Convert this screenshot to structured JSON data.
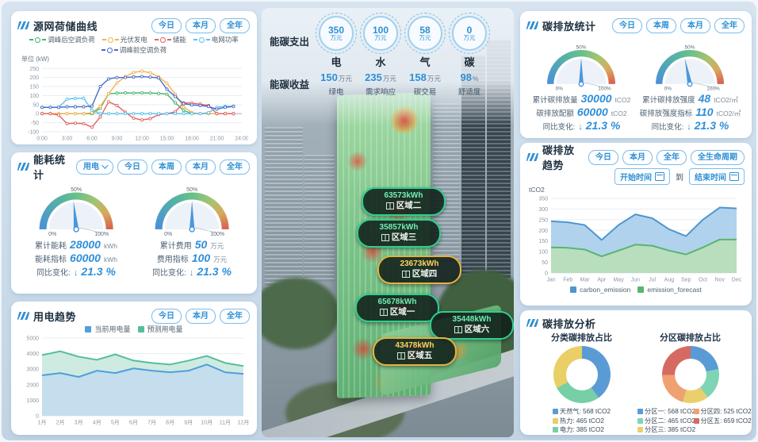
{
  "left": {
    "source_grid": {
      "title": "源网荷储曲线",
      "buttons": [
        "今日",
        "本月",
        "全年"
      ],
      "unit_label": "单位 (kW)"
    },
    "energy_stats": {
      "title": "能耗统计",
      "type_select": "用电",
      "buttons": [
        "今日",
        "本周",
        "本月",
        "全年"
      ],
      "gauges": [
        {
          "scale": [
            "0%",
            "50%",
            "100%"
          ],
          "needle_pct": 0.47,
          "rows": [
            {
              "label": "累计能耗",
              "value": "28000",
              "unit": "kWh"
            },
            {
              "label": "能耗指标",
              "value": "60000",
              "unit": "kWh"
            },
            {
              "label": "同比变化:",
              "arrow": "↓",
              "value": "21.3 %",
              "unit": ""
            }
          ]
        },
        {
          "scale": [
            "0%",
            "50%",
            "100%"
          ],
          "needle_pct": 0.5,
          "rows": [
            {
              "label": "累计费用",
              "value": "50",
              "unit": "万元"
            },
            {
              "label": "费用指标",
              "value": "100",
              "unit": "万元"
            },
            {
              "label": "同比变化:",
              "arrow": "↓",
              "value": "21.3 %",
              "unit": ""
            }
          ]
        }
      ]
    },
    "power_trend": {
      "title": "用电趋势",
      "buttons": [
        "今日",
        "本月",
        "全年"
      ]
    }
  },
  "center": {
    "expense": {
      "label": "能碳支出",
      "items": [
        {
          "value": "350",
          "unit": "万元",
          "name": "电"
        },
        {
          "value": "100",
          "unit": "万元",
          "name": "水"
        },
        {
          "value": "58",
          "unit": "万元",
          "name": "气"
        },
        {
          "value": "0",
          "unit": "万元",
          "name": "碳"
        }
      ]
    },
    "income": {
      "label": "能碳收益",
      "items": [
        {
          "value": "150",
          "unit": "万元",
          "name": "绿电"
        },
        {
          "value": "235",
          "unit": "万元",
          "name": "需求响应"
        },
        {
          "value": "158",
          "unit": "万元",
          "name": "碳交易"
        },
        {
          "value": "98",
          "unit": "%",
          "name": "舒适度"
        }
      ]
    },
    "zones": [
      {
        "value": "63573kWh",
        "name": "区域二",
        "level": "green"
      },
      {
        "value": "35857kWh",
        "name": "区域三",
        "level": "green"
      },
      {
        "value": "23673kWh",
        "name": "区域四",
        "level": "yellow"
      },
      {
        "value": "65678kWh",
        "name": "区域一",
        "level": "green"
      },
      {
        "value": "35448kWh",
        "name": "区域六",
        "level": "green"
      },
      {
        "value": "43478kWh",
        "name": "区域五",
        "level": "yellow"
      }
    ]
  },
  "right": {
    "carbon_stats": {
      "title": "碳排放统计",
      "buttons": [
        "今日",
        "本周",
        "本月",
        "全年"
      ],
      "gauges": [
        {
          "scale": [
            "0%",
            "50%",
            "100%"
          ],
          "needle_pct": 0.5,
          "rows": [
            {
              "label": "累计碳排放量",
              "value": "30000",
              "unit": "tCO2"
            },
            {
              "label": "碳排放配额",
              "value": "60000",
              "unit": "tCO2"
            },
            {
              "label": "同比变化:",
              "arrow": "↓",
              "value": "21.3 %",
              "unit": ""
            }
          ]
        },
        {
          "scale": [
            "0%",
            "50%",
            "100%"
          ],
          "needle_pct": 0.44,
          "rows": [
            {
              "label": "累计碳排放强度",
              "value": "48",
              "unit": "tCO2/㎡"
            },
            {
              "label": "碳排放强度指标",
              "value": "110",
              "unit": "tCO2/㎡"
            },
            {
              "label": "同比变化:",
              "arrow": "↓",
              "value": "21.3 %",
              "unit": ""
            }
          ]
        }
      ]
    },
    "carbon_trend": {
      "title": "碳排放趋势",
      "buttons": [
        "今日",
        "本月",
        "全年",
        "全生命周期"
      ],
      "date_start": "开始时间",
      "date_to": "到",
      "date_end": "结束时间",
      "ylabel": "tCO2"
    },
    "carbon_analysis": {
      "title": "碳排放分析",
      "left_title": "分类碳排放占比",
      "right_title": "分区碳排放占比"
    }
  },
  "chart_data": [
    {
      "id": "source_grid_curve",
      "type": "line",
      "title": "源网荷储曲线",
      "ylabel": "单位 (kW)",
      "ylim": [
        -100,
        260
      ],
      "yticks": [
        -100,
        -50,
        0,
        50,
        100,
        150,
        200,
        250
      ],
      "x_max": 24,
      "xtick_labels": [
        "0:00",
        "3:00",
        "6:00",
        "9:00",
        "12:00",
        "15:00",
        "18:00",
        "21:00",
        "24:00"
      ],
      "xtick_pos": [
        0,
        3,
        6,
        9,
        12,
        15,
        18,
        21,
        24
      ],
      "series": [
        {
          "name": "调峰后空调负荷",
          "color": "#46b36a",
          "markers": true,
          "values": [
            0,
            0,
            0,
            0,
            0,
            0,
            0,
            30,
            110,
            113,
            115,
            114,
            115,
            114,
            112,
            108,
            60,
            18,
            0,
            0,
            0,
            0,
            0,
            0
          ]
        },
        {
          "name": "光伏发电",
          "color": "#f2b24f",
          "markers": true,
          "values": [
            0,
            0,
            0,
            0,
            0,
            0,
            5,
            40,
            110,
            170,
            205,
            228,
            235,
            226,
            204,
            168,
            108,
            38,
            5,
            0,
            0,
            0,
            0,
            0
          ]
        },
        {
          "name": "储能",
          "color": "#e26262",
          "markers": true,
          "values": [
            0,
            0,
            -8,
            -55,
            -53,
            -55,
            -75,
            -18,
            65,
            45,
            8,
            -25,
            -35,
            -28,
            -5,
            0,
            10,
            60,
            58,
            53,
            45,
            0,
            0,
            0
          ]
        },
        {
          "name": "电网功率",
          "color": "#5fc0ea",
          "markers": true,
          "values": [
            35,
            35,
            35,
            80,
            84,
            85,
            20,
            0,
            0,
            0,
            0,
            0,
            0,
            0,
            0,
            0,
            0,
            0,
            0,
            0,
            5,
            35,
            40,
            40
          ]
        },
        {
          "name": "调峰前空调负荷",
          "color": "#4a6cc8",
          "markers": true,
          "values": [
            35,
            35,
            35,
            38,
            38,
            38,
            42,
            150,
            192,
            200,
            200,
            203,
            205,
            202,
            198,
            135,
            95,
            55,
            48,
            45,
            40,
            25,
            35,
            40
          ]
        }
      ]
    },
    {
      "id": "power_trend",
      "type": "area",
      "title": "用电趋势",
      "categories": [
        "1月",
        "2月",
        "3月",
        "4月",
        "5月",
        "6月",
        "7月",
        "8月",
        "9月",
        "10月",
        "11月",
        "12月"
      ],
      "ylim": [
        0,
        5000
      ],
      "yticks": [
        0,
        1000,
        2000,
        3000,
        4000,
        5000
      ],
      "series": [
        {
          "name": "预测用电量",
          "color": "#56bd9c",
          "fill": "#c9e9df",
          "width": 2,
          "values": [
            3900,
            4150,
            3800,
            3600,
            3950,
            3550,
            3400,
            3300,
            3550,
            3850,
            3400,
            3200
          ]
        },
        {
          "name": "当前用电量",
          "color": "#4f9fd8",
          "fill": "#c3ddf0",
          "width": 2,
          "values": [
            2600,
            2750,
            2500,
            2900,
            2750,
            3050,
            2900,
            2800,
            2900,
            3300,
            2800,
            2700
          ]
        }
      ],
      "legend": [
        {
          "name": "当前用电量",
          "color": "#4f9fd8"
        },
        {
          "name": "预测用电量",
          "color": "#56bd9c"
        }
      ]
    },
    {
      "id": "carbon_trend",
      "type": "area",
      "title": "碳排放趋势",
      "ylabel": "tCO2",
      "categories": [
        "Jan",
        "Feb",
        "Mar",
        "Apr",
        "May",
        "Jun",
        "Jul",
        "Aug",
        "Sep",
        "Oct",
        "Nov",
        "Dec"
      ],
      "ylim": [
        0,
        350
      ],
      "yticks": [
        0,
        50,
        100,
        150,
        200,
        250,
        300,
        350
      ],
      "series": [
        {
          "name": "carbon_emission",
          "color": "#4f96cf",
          "fill": "#a9cdea",
          "width": 2,
          "values": [
            243,
            238,
            225,
            155,
            225,
            275,
            257,
            205,
            173,
            250,
            307,
            303
          ]
        },
        {
          "name": "emission_forecast",
          "color": "#58b56e",
          "fill": "#b9dfb9",
          "width": 2,
          "values": [
            120,
            118,
            110,
            78,
            105,
            133,
            128,
            105,
            87,
            120,
            157,
            157
          ]
        }
      ]
    },
    {
      "id": "category_donut",
      "type": "pie",
      "title": "分类碳排放占比",
      "slices": [
        {
          "name": "天然气",
          "value": 568,
          "label": "568 tCO2",
          "color": "#5b9bd5"
        },
        {
          "name": "电力",
          "value": 385,
          "label": "385 tCO2",
          "color": "#76cfa6"
        },
        {
          "name": "热力",
          "value": 465,
          "label": "465 tCO2",
          "color": "#e9cf66"
        }
      ],
      "legend_order": [
        0,
        2,
        1
      ]
    },
    {
      "id": "zone_donut",
      "type": "pie",
      "title": "分区碳排放占比",
      "slices": [
        {
          "name": "分区一",
          "value": 568,
          "label": "568 tCO2",
          "color": "#5b9bd5"
        },
        {
          "name": "分区二",
          "value": 465,
          "label": "465 tCO2",
          "color": "#7fd4b4"
        },
        {
          "name": "分区三",
          "value": 385,
          "label": "385 tCO2",
          "color": "#e9d06c"
        },
        {
          "name": "分区四",
          "value": 525,
          "label": "525 tCO2",
          "color": "#f0a172"
        },
        {
          "name": "分区五",
          "value": 659,
          "label": "659 tCO2",
          "color": "#d66a62"
        }
      ],
      "legend_order": [
        0,
        1,
        2,
        3,
        4
      ]
    }
  ]
}
